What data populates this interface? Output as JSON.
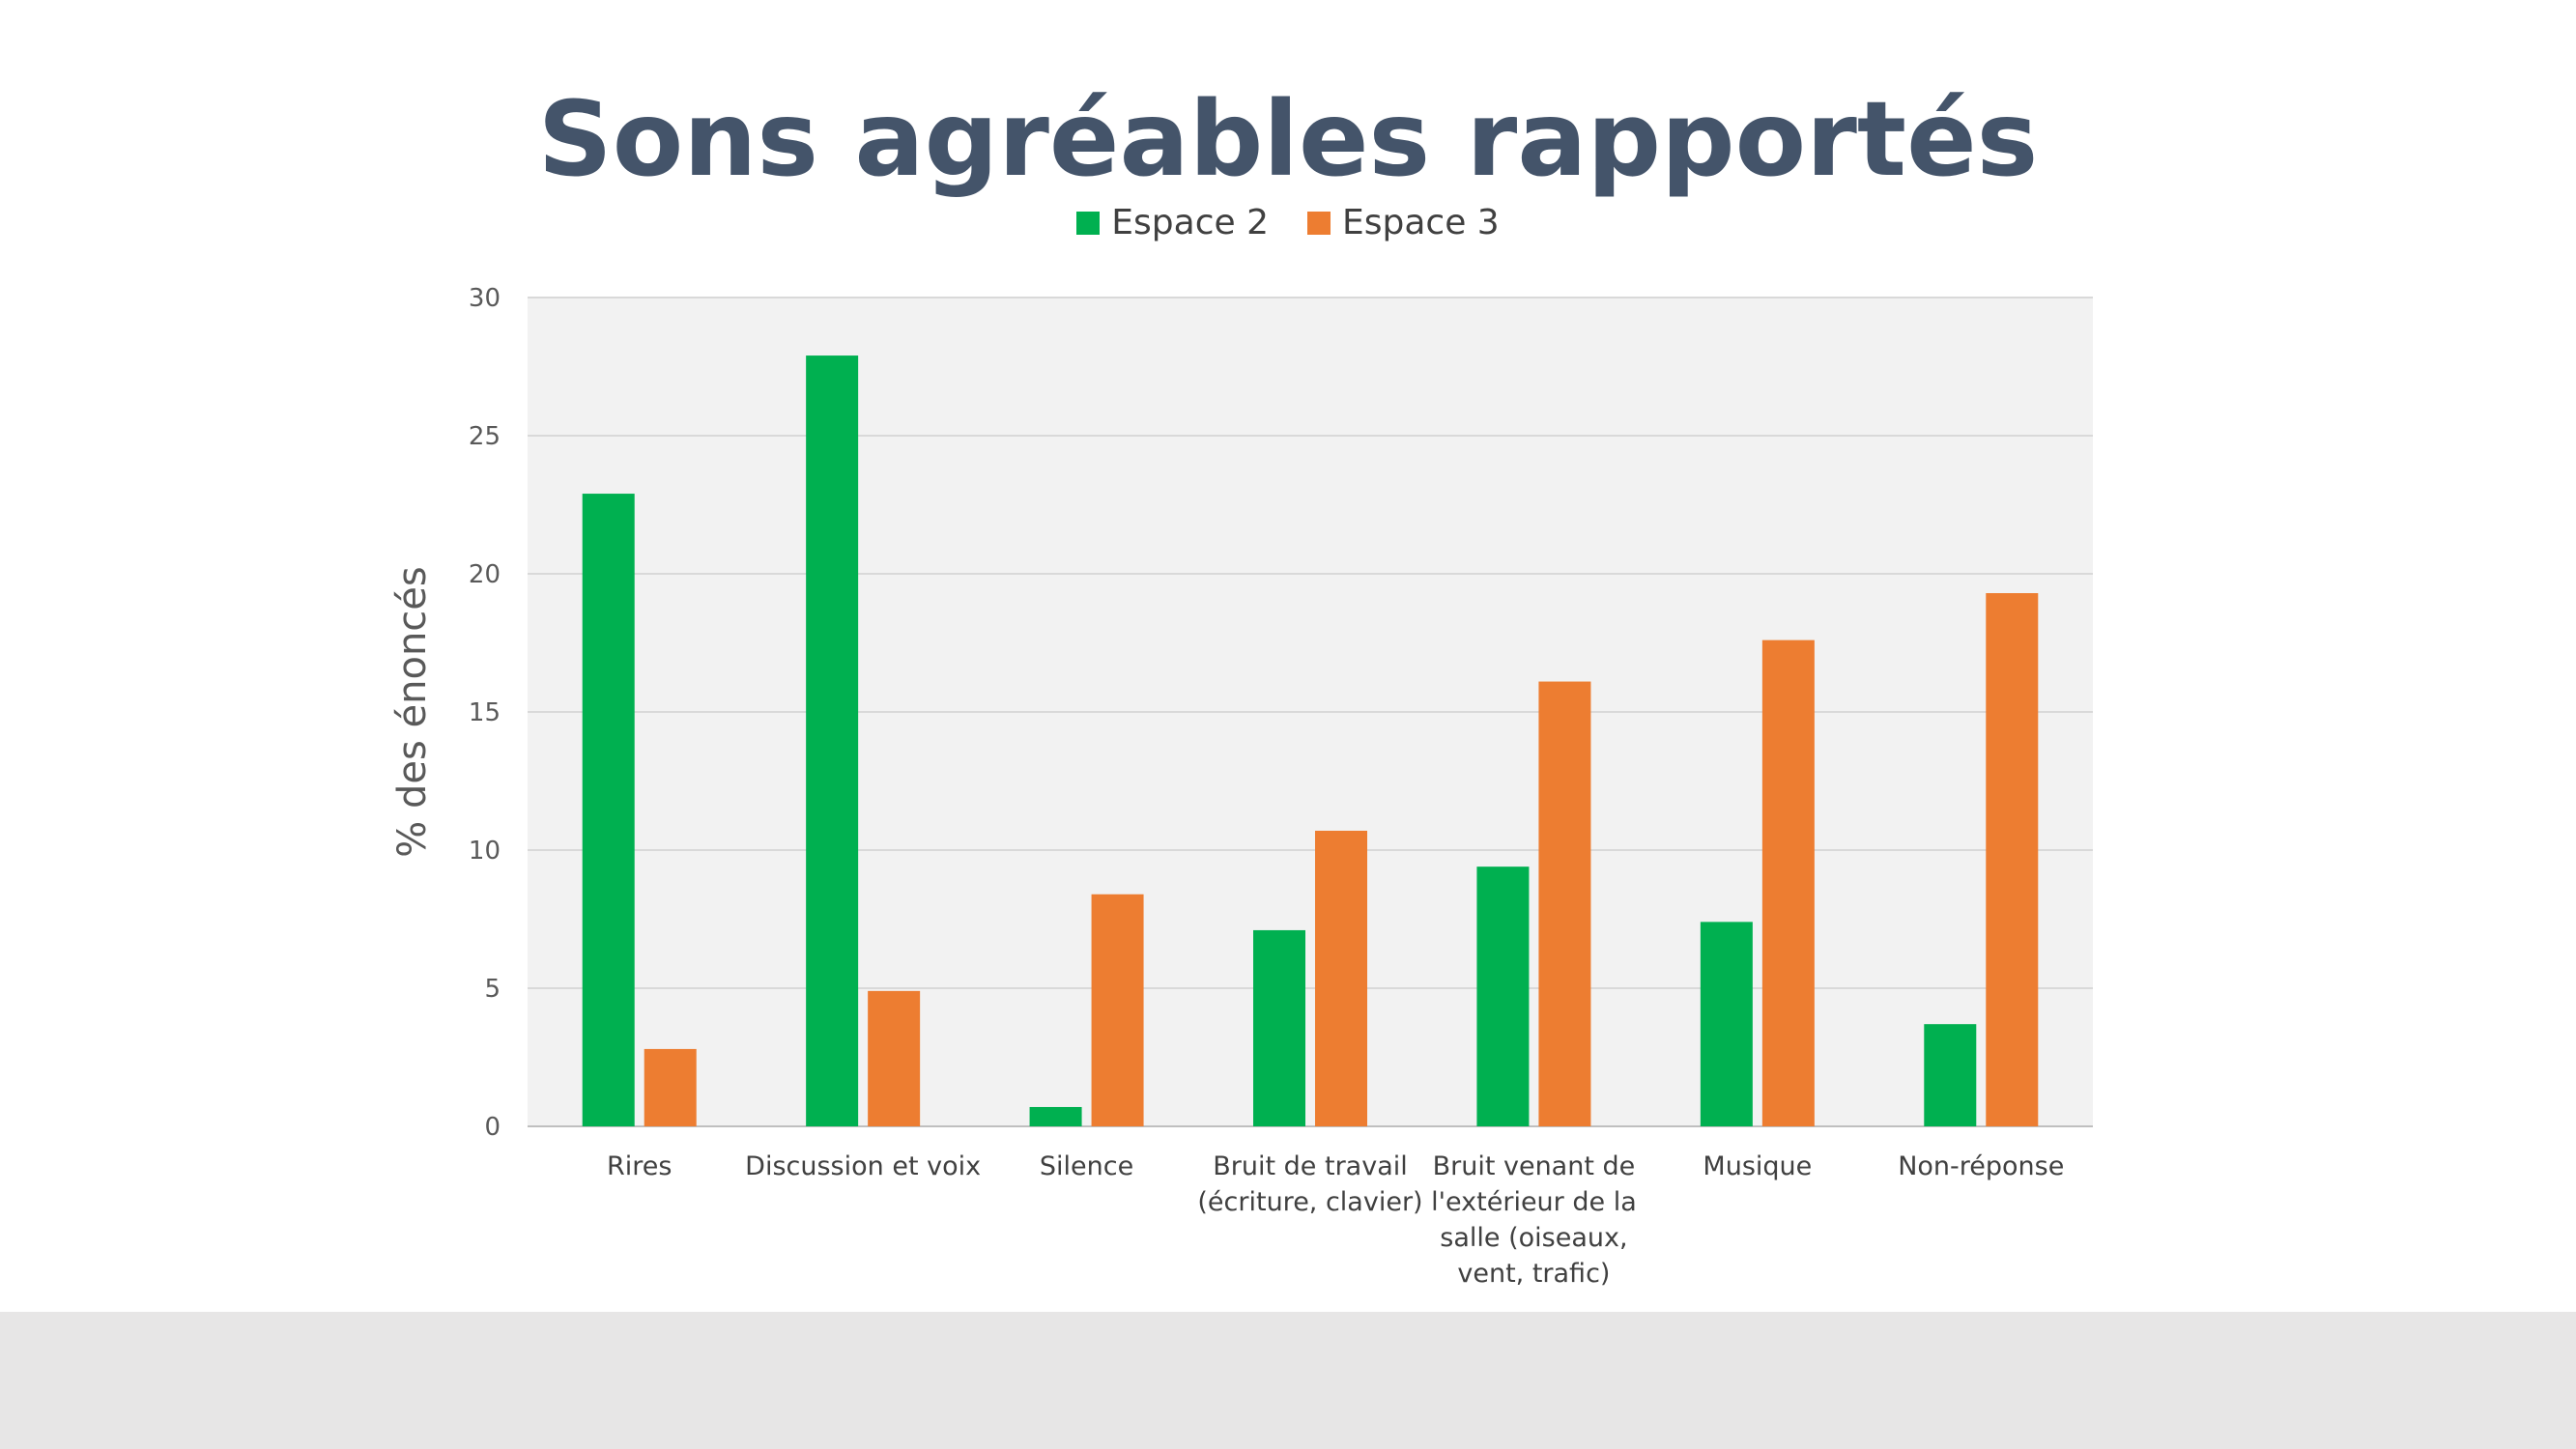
{
  "chart_data": {
    "type": "bar",
    "title": "Sons agréables rapportés",
    "xlabel": "",
    "ylabel": "% des énoncés",
    "ylim": [
      0,
      30
    ],
    "yticks": [
      0,
      5,
      10,
      15,
      20,
      25,
      30
    ],
    "grid": true,
    "legend_position": "top",
    "categories": [
      [
        "Rires"
      ],
      [
        "Discussion et voix"
      ],
      [
        "Silence"
      ],
      [
        "Bruit de travail",
        "(écriture, clavier)"
      ],
      [
        "Bruit venant de",
        "l'extérieur de la",
        "salle (oiseaux,",
        "vent, trafic)"
      ],
      [
        "Musique"
      ],
      [
        "Non-réponse"
      ]
    ],
    "series": [
      {
        "name": "Espace 2",
        "color": "#00b050",
        "values": [
          22.9,
          27.9,
          0.7,
          7.1,
          9.4,
          7.4,
          3.7
        ]
      },
      {
        "name": "Espace 3",
        "color": "#ed7d31",
        "values": [
          2.8,
          4.9,
          8.4,
          10.7,
          16.1,
          17.6,
          19.3
        ]
      }
    ]
  }
}
